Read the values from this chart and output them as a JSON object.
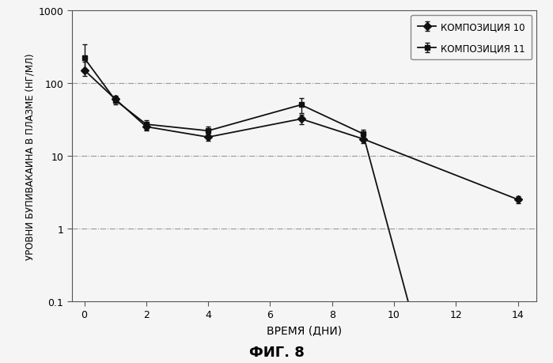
{
  "comp10_x": [
    0,
    1,
    2,
    4,
    7,
    9,
    14
  ],
  "comp10_y": [
    150,
    60,
    25,
    18,
    32,
    17,
    2.5
  ],
  "comp10_yerr_low": [
    25,
    7,
    3,
    2,
    5,
    2,
    0.3
  ],
  "comp10_yerr_high": [
    45,
    7,
    3,
    2,
    5,
    2,
    0.3
  ],
  "comp11_x": [
    0,
    1,
    2,
    4,
    7,
    9,
    10.5
  ],
  "comp11_y": [
    220,
    58,
    27,
    22,
    50,
    20,
    0.085
  ],
  "comp11_yerr_low": [
    70,
    7,
    4,
    3,
    12,
    3,
    0.01
  ],
  "comp11_yerr_high": [
    120,
    7,
    4,
    3,
    12,
    3,
    0.01
  ],
  "xlabel": "ВРЕМЯ (ДНИ)",
  "ylabel": "УРОВНИ БУПИВАКАИНА В ПЛАЗМЕ (НГ/МЛ)",
  "title": "ФИГ. 8",
  "legend10": "КОМПОЗИЦИЯ 10",
  "legend11": "КОМПОЗИЦИЯ 11",
  "xlim": [
    -0.4,
    14.6
  ],
  "ylim_log": [
    0.1,
    1000
  ],
  "grid_color": "#999999",
  "line_color": "#111111",
  "bg_color": "#f5f5f5"
}
